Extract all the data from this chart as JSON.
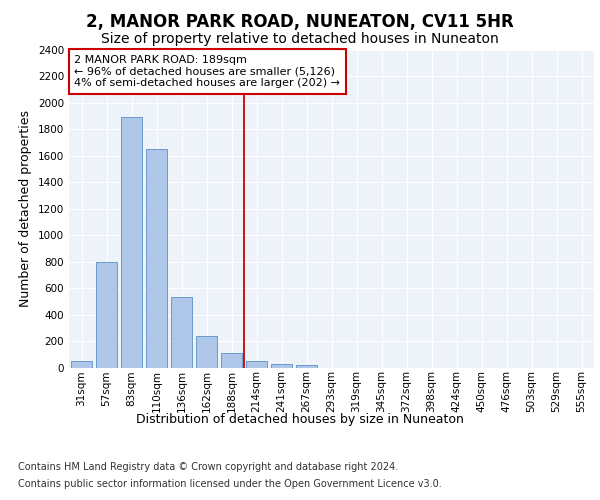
{
  "title": "2, MANOR PARK ROAD, NUNEATON, CV11 5HR",
  "subtitle": "Size of property relative to detached houses in Nuneaton",
  "xlabel": "Distribution of detached houses by size in Nuneaton",
  "ylabel": "Number of detached properties",
  "bar_labels": [
    "31sqm",
    "57sqm",
    "83sqm",
    "110sqm",
    "136sqm",
    "162sqm",
    "188sqm",
    "214sqm",
    "241sqm",
    "267sqm",
    "293sqm",
    "319sqm",
    "345sqm",
    "372sqm",
    "398sqm",
    "424sqm",
    "450sqm",
    "476sqm",
    "503sqm",
    "529sqm",
    "555sqm"
  ],
  "bar_values": [
    50,
    800,
    1890,
    1650,
    530,
    235,
    110,
    50,
    30,
    20,
    0,
    0,
    0,
    0,
    0,
    0,
    0,
    0,
    0,
    0,
    0
  ],
  "bar_color": "#aec6e8",
  "bar_edge_color": "#5b8fc9",
  "ylim": [
    0,
    2400
  ],
  "yticks": [
    0,
    200,
    400,
    600,
    800,
    1000,
    1200,
    1400,
    1600,
    1800,
    2000,
    2200,
    2400
  ],
  "vline_x": 6.5,
  "vline_color": "#cc0000",
  "annotation_title": "2 MANOR PARK ROAD: 189sqm",
  "annotation_line1": "← 96% of detached houses are smaller (5,126)",
  "annotation_line2": "4% of semi-detached houses are larger (202) →",
  "annotation_box_color": "#cc0000",
  "footer_line1": "Contains HM Land Registry data © Crown copyright and database right 2024.",
  "footer_line2": "Contains public sector information licensed under the Open Government Licence v3.0.",
  "background_color": "#eef2f9",
  "grid_color": "#ffffff",
  "title_fontsize": 12,
  "subtitle_fontsize": 10,
  "ylabel_fontsize": 9,
  "xlabel_fontsize": 9,
  "tick_fontsize": 7.5,
  "annotation_fontsize": 8,
  "footer_fontsize": 7
}
